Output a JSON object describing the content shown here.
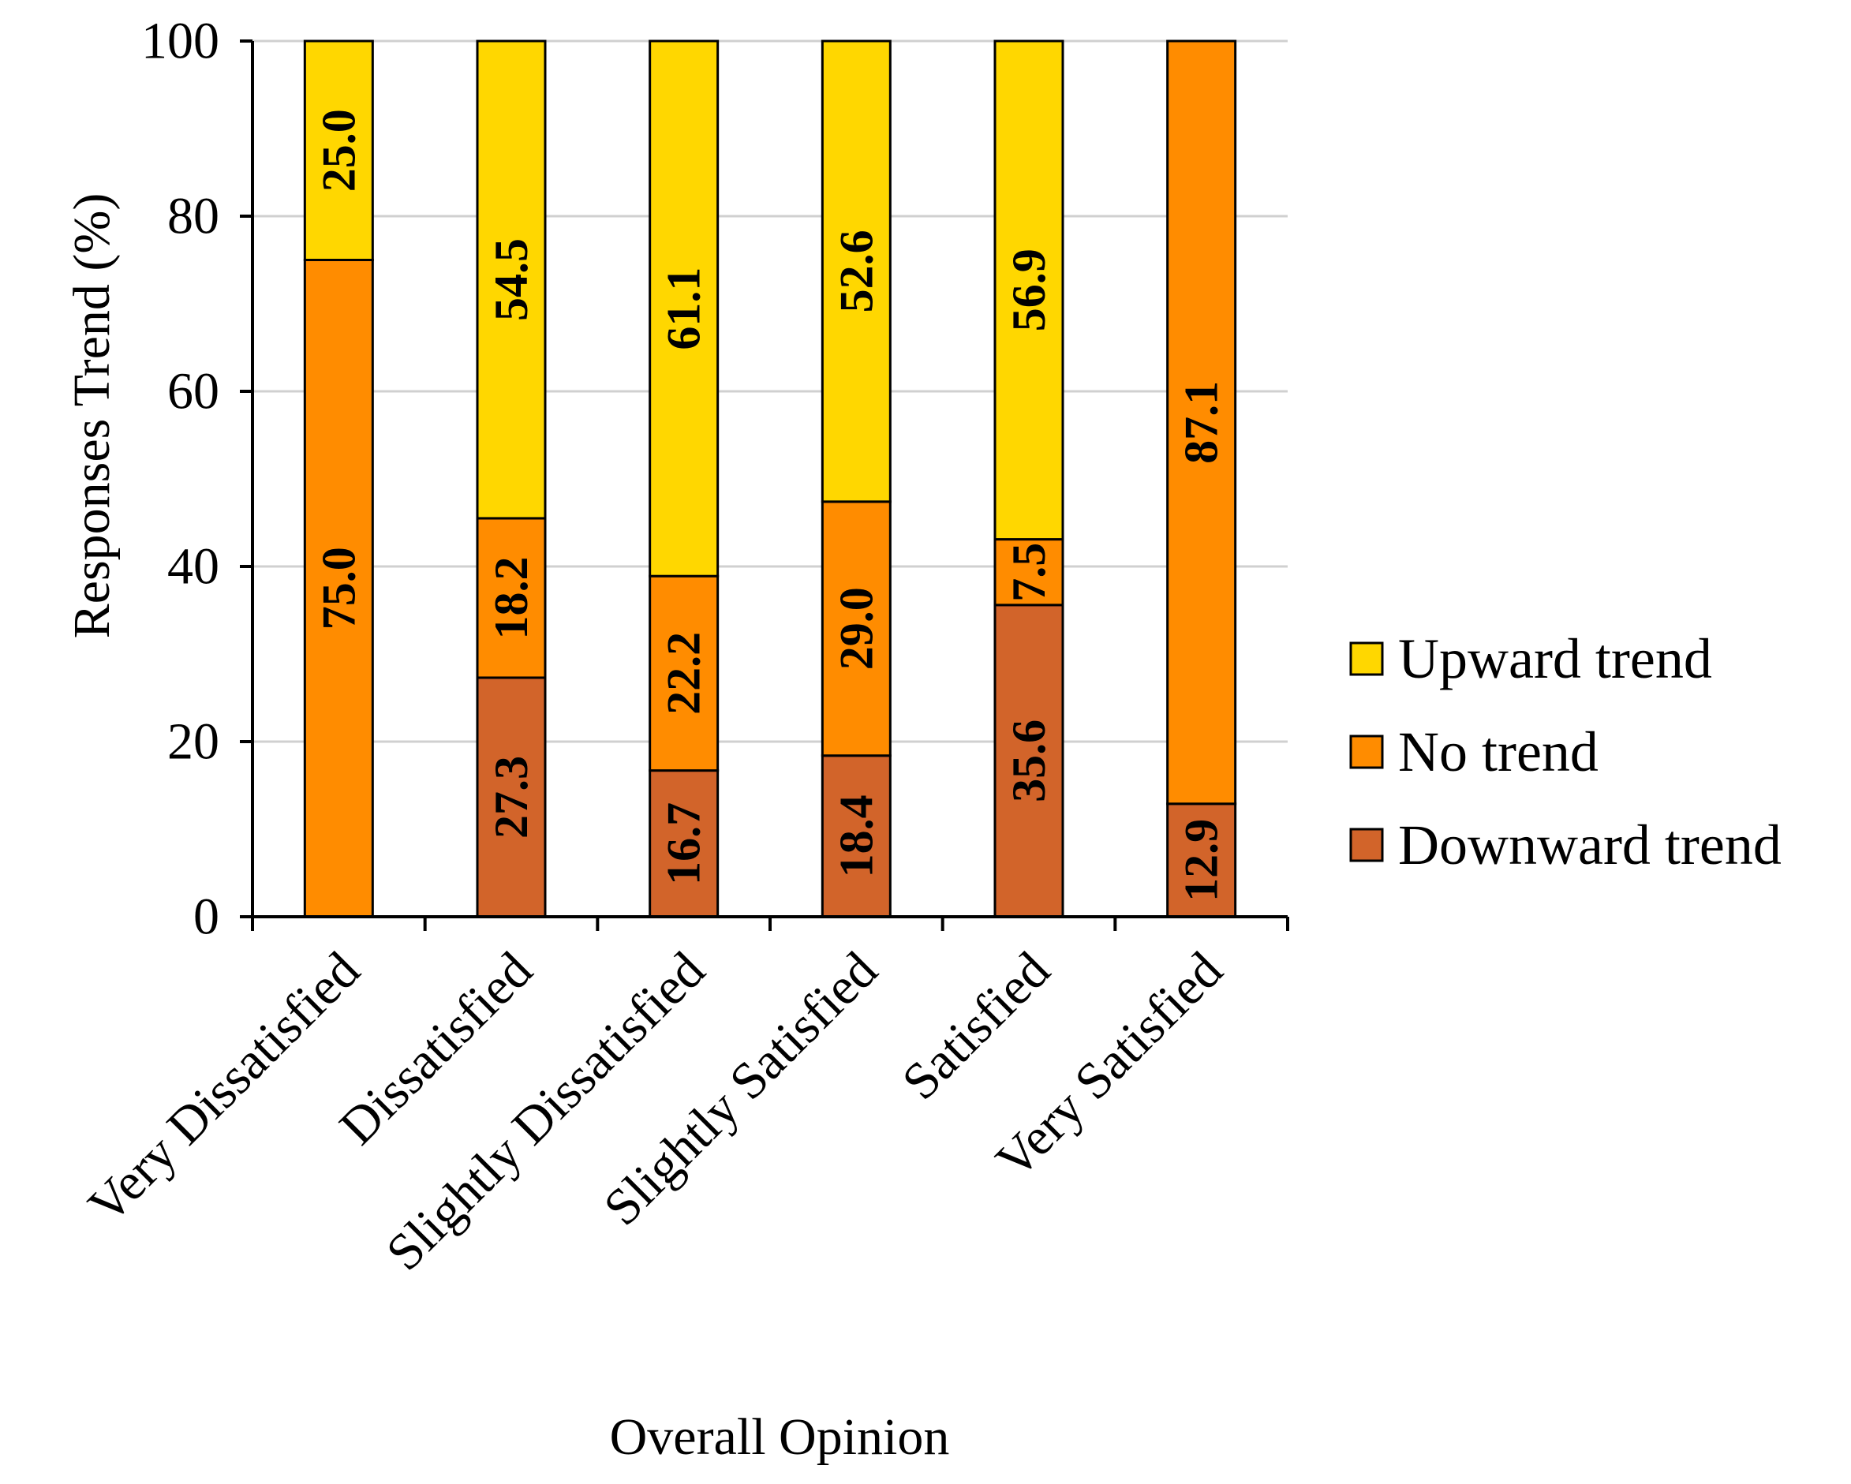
{
  "chart_data": {
    "type": "bar",
    "stacked": true,
    "title": "",
    "xlabel": "Overall Opinion",
    "ylabel": "Responses Trend (%)",
    "ylim": [
      0,
      100
    ],
    "yticks": [
      "0",
      "20",
      "40",
      "60",
      "80",
      "100"
    ],
    "grid": true,
    "legend_position": "right",
    "categories": [
      "Very Dissatisfied",
      "Dissatisfied",
      "Slightly Dissatisfied",
      "Slightly Satisfied",
      "Satisfied",
      "Very Satisfied"
    ],
    "series": [
      {
        "name": "Downward trend",
        "color": "#D2642A",
        "values": [
          0,
          27.3,
          16.7,
          18.4,
          35.6,
          12.9
        ],
        "labels": [
          "",
          "27.3",
          "16.7",
          "18.4",
          "35.6",
          "12.9"
        ]
      },
      {
        "name": "No trend",
        "color": "#FF8C00",
        "values": [
          75.0,
          18.2,
          22.2,
          29.0,
          7.5,
          87.1
        ],
        "labels": [
          "75.0",
          "18.2",
          "22.2",
          "29.0",
          "7.5",
          "87.1"
        ]
      },
      {
        "name": "Upward trend",
        "color": "#FFD700",
        "values": [
          25.0,
          54.5,
          61.1,
          52.6,
          56.9,
          0
        ],
        "labels": [
          "25.0",
          "54.5",
          "61.1",
          "52.6",
          "56.9",
          ""
        ]
      }
    ],
    "legend_order": [
      "Upward trend",
      "No trend",
      "Downward trend"
    ]
  }
}
